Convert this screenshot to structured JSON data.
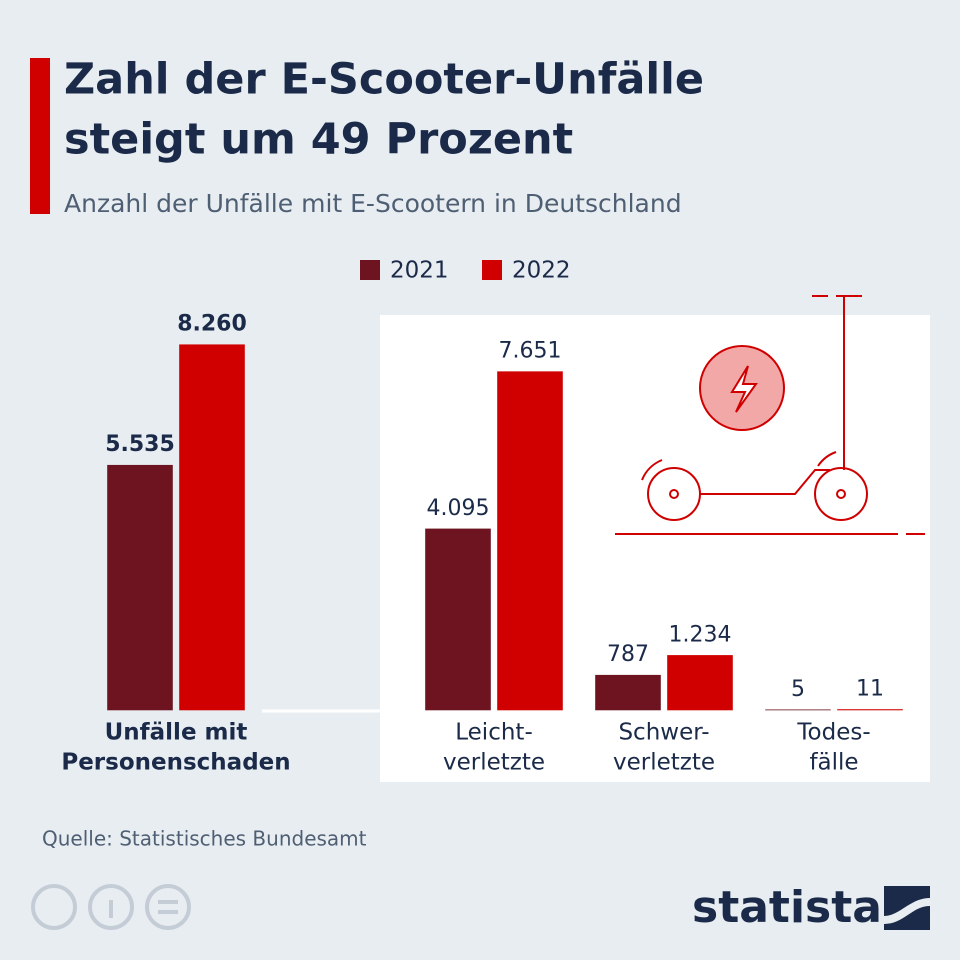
{
  "chart_data": {
    "type": "bar",
    "title": [
      "Zahl der E-Scooter-Unfälle",
      "steigt um 49 Prozent"
    ],
    "subtitle": "Anzahl der Unfälle mit E-Scootern in Deutschland",
    "categories": [
      [
        "Unfälle mit",
        "Personenschaden"
      ],
      [
        "Leicht-",
        "verletzte"
      ],
      [
        "Schwer-",
        "verletzte"
      ],
      [
        "Todes-",
        "fälle"
      ]
    ],
    "series": [
      {
        "name": "2021",
        "color": "#6d1420",
        "values": [
          5535,
          4095,
          787,
          5
        ],
        "value_labels": [
          "5.535",
          "4.095",
          "787",
          "5"
        ]
      },
      {
        "name": "2022",
        "color": "#d00000",
        "values": [
          8260,
          7651,
          1234,
          11
        ],
        "value_labels": [
          "8.260",
          "7.651",
          "1.234",
          "11"
        ]
      }
    ],
    "ylim": [
      0,
      9000
    ],
    "source": "Quelle: Statistisches Bundesamt",
    "brand": "statista"
  }
}
